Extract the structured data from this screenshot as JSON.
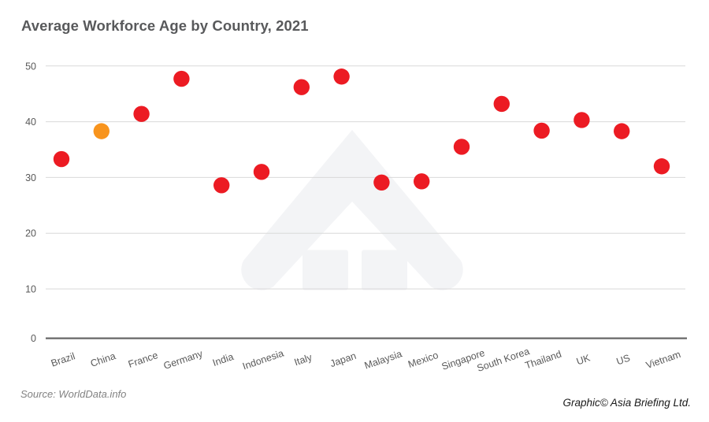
{
  "title": "Average Workforce Age by Country, 2021",
  "footer": {
    "source": "Source: WorldData.info",
    "credit": "Graphic© Asia Briefing Ltd."
  },
  "colors": {
    "point": "#ec1b23",
    "highlight": "#f8941d",
    "title_text": "#58595b",
    "axis_text": "#595959",
    "gridline": "#d9d9d9",
    "axis_line": "#6f6f6f",
    "watermark": "#f3f4f6"
  },
  "watermark_icon": "asia-briefing-logo",
  "chart_data": {
    "type": "scatter",
    "title": "Average Workforce Age by Country, 2021",
    "categories": [
      "Brazil",
      "China",
      "France",
      "Germany",
      "India",
      "Indonesia",
      "Italy",
      "Japan",
      "Malaysia",
      "Mexico",
      "Singapore",
      "South Korea",
      "Thailand",
      "UK",
      "US",
      "Vietnam"
    ],
    "values": [
      33.3,
      38.3,
      41.4,
      47.7,
      28.6,
      31.0,
      46.2,
      48.1,
      29.1,
      29.3,
      35.5,
      43.2,
      38.4,
      40.3,
      38.3,
      32.0
    ],
    "highlight_category": "China",
    "xlabel": "",
    "ylabel": "",
    "ylim": [
      0,
      50
    ],
    "yticks": [
      0,
      10,
      20,
      30,
      40,
      50
    ],
    "grid": true,
    "legend": "none",
    "x_label_rotation_deg": -19
  }
}
